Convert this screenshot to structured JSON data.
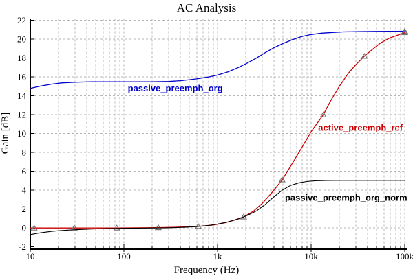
{
  "chart_data": {
    "type": "line",
    "title": "AC Analysis",
    "xlabel": "Frequency (Hz)",
    "ylabel": "Gain [dB]",
    "x_scale": "log",
    "xlim": [
      10,
      100000
    ],
    "ylim": [
      -2,
      22
    ],
    "grid": true,
    "legend_position": "labels-on-plot",
    "colors": {
      "background": "#ffffff",
      "grid": "#b5b5b5",
      "axis": "#000000",
      "marker": "#757575"
    },
    "x_ticks": [
      {
        "value": 10,
        "label": "10"
      },
      {
        "value": 100,
        "label": "100"
      },
      {
        "value": 1000,
        "label": "1k"
      },
      {
        "value": 10000,
        "label": "10k"
      },
      {
        "value": 100000,
        "label": "100k"
      }
    ],
    "x_minor_subs": [
      2,
      3,
      4,
      5,
      6,
      7,
      8,
      9
    ],
    "y_ticks": [
      {
        "value": -2,
        "label": "-2"
      },
      {
        "value": 0,
        "label": "0"
      },
      {
        "value": 2,
        "label": "2"
      },
      {
        "value": 4,
        "label": "4"
      },
      {
        "value": 6,
        "label": "6"
      },
      {
        "value": 8,
        "label": "8"
      },
      {
        "value": 10,
        "label": "10"
      },
      {
        "value": 12,
        "label": "12"
      },
      {
        "value": 14,
        "label": "14"
      },
      {
        "value": 16,
        "label": "16"
      },
      {
        "value": 18,
        "label": "18"
      },
      {
        "value": 20,
        "label": "20"
      },
      {
        "value": 22,
        "label": "22"
      }
    ],
    "series": [
      {
        "name": "passive_preemph_org",
        "color": "#0000CC",
        "stroke_width": 1.3,
        "label": {
          "text": "passive_preemph_org",
          "f": 110,
          "db": 14.5
        },
        "points": [
          [
            10,
            14.8
          ],
          [
            13,
            15.05
          ],
          [
            17,
            15.25
          ],
          [
            22,
            15.38
          ],
          [
            30,
            15.45
          ],
          [
            45,
            15.5
          ],
          [
            70,
            15.5
          ],
          [
            120,
            15.5
          ],
          [
            200,
            15.5
          ],
          [
            300,
            15.53
          ],
          [
            420,
            15.62
          ],
          [
            600,
            15.8
          ],
          [
            800,
            16.0
          ],
          [
            1000,
            16.2
          ],
          [
            1300,
            16.55
          ],
          [
            1700,
            17.05
          ],
          [
            2100,
            17.5
          ],
          [
            2600,
            18.0
          ],
          [
            3200,
            18.55
          ],
          [
            4000,
            19.1
          ],
          [
            5000,
            19.55
          ],
          [
            6300,
            19.95
          ],
          [
            8000,
            20.3
          ],
          [
            10000,
            20.5
          ],
          [
            13000,
            20.65
          ],
          [
            17000,
            20.72
          ],
          [
            22000,
            20.78
          ],
          [
            30000,
            20.8
          ],
          [
            50000,
            20.83
          ],
          [
            100000,
            20.85
          ]
        ],
        "markers": [
          [
            100000,
            20.85
          ]
        ]
      },
      {
        "name": "active_preemph_ref",
        "color": "#CC0000",
        "stroke_width": 1.3,
        "label": {
          "text": "active_preemph_ref",
          "f": 11900,
          "db": 10.3
        },
        "points": [
          [
            10,
            0
          ],
          [
            20,
            0
          ],
          [
            40,
            0
          ],
          [
            80,
            0
          ],
          [
            150,
            0.02
          ],
          [
            250,
            0.05
          ],
          [
            400,
            0.1
          ],
          [
            620,
            0.17
          ],
          [
            900,
            0.32
          ],
          [
            1200,
            0.55
          ],
          [
            1500,
            0.82
          ],
          [
            1900,
            1.18
          ],
          [
            2400,
            1.75
          ],
          [
            3000,
            2.6
          ],
          [
            3700,
            3.6
          ],
          [
            4300,
            4.4
          ],
          [
            4900,
            5.1
          ],
          [
            6000,
            6.5
          ],
          [
            7000,
            7.6
          ],
          [
            8500,
            9.0
          ],
          [
            10000,
            10.2
          ],
          [
            12000,
            11.3
          ],
          [
            13500,
            12.0
          ],
          [
            16000,
            13.4
          ],
          [
            20000,
            15.0
          ],
          [
            25000,
            16.4
          ],
          [
            30000,
            17.3
          ],
          [
            37000,
            18.2
          ],
          [
            45000,
            18.9
          ],
          [
            55000,
            19.6
          ],
          [
            70000,
            20.15
          ],
          [
            85000,
            20.45
          ],
          [
            100000,
            20.7
          ]
        ],
        "markers": [
          [
            11,
            0
          ],
          [
            29.5,
            0
          ],
          [
            84,
            0
          ],
          [
            233,
            0.04
          ],
          [
            622,
            0.17
          ],
          [
            1900,
            1.18
          ],
          [
            4900,
            5.1
          ],
          [
            13500,
            12.0
          ],
          [
            37000,
            18.2
          ],
          [
            100000,
            20.7
          ]
        ]
      },
      {
        "name": "passive_preemph_org_norm",
        "color": "#000000",
        "stroke_width": 1.1,
        "label": {
          "text": "passive_preemph_org_norm",
          "f": 5250,
          "db": 2.9
        },
        "points": [
          [
            10,
            -0.7
          ],
          [
            13,
            -0.5
          ],
          [
            17,
            -0.36
          ],
          [
            22,
            -0.26
          ],
          [
            30,
            -0.18
          ],
          [
            45,
            -0.11
          ],
          [
            70,
            -0.06
          ],
          [
            110,
            -0.03
          ],
          [
            180,
            -0.01
          ],
          [
            300,
            0.02
          ],
          [
            450,
            0.08
          ],
          [
            600,
            0.15
          ],
          [
            800,
            0.27
          ],
          [
            1000,
            0.42
          ],
          [
            1300,
            0.65
          ],
          [
            1700,
            0.98
          ],
          [
            2100,
            1.35
          ],
          [
            2600,
            1.8
          ],
          [
            3200,
            2.45
          ],
          [
            4000,
            3.3
          ],
          [
            4900,
            4.0
          ],
          [
            6000,
            4.5
          ],
          [
            7500,
            4.8
          ],
          [
            9000,
            4.92
          ],
          [
            11000,
            5.0
          ],
          [
            15000,
            5.03
          ],
          [
            20000,
            5.05
          ],
          [
            30000,
            5.05
          ],
          [
            50000,
            5.05
          ],
          [
            100000,
            5.05
          ]
        ],
        "markers": []
      }
    ]
  }
}
